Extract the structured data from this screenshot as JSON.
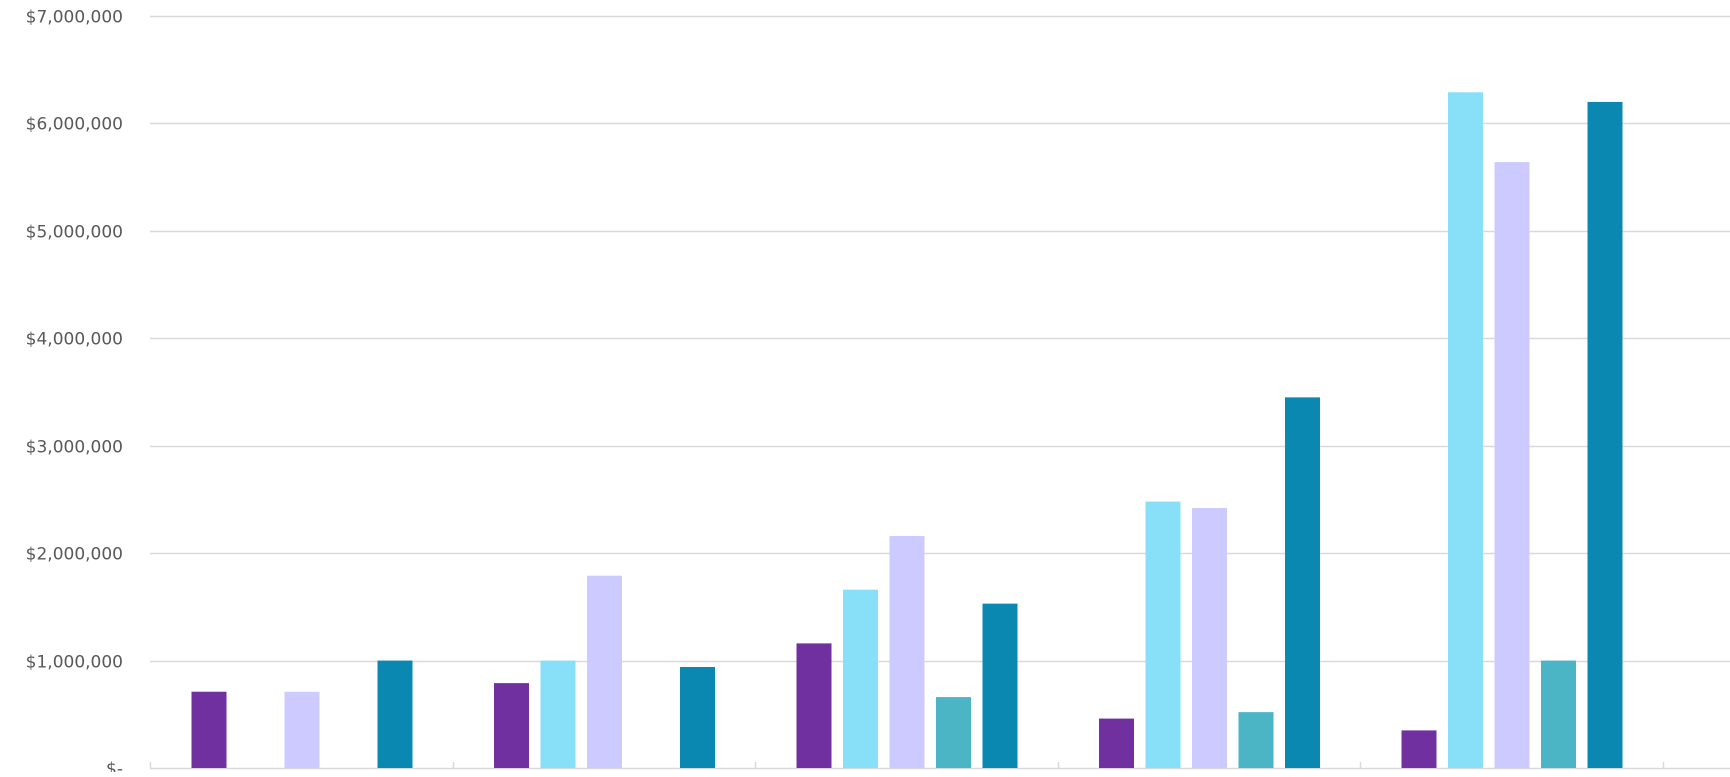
{
  "chart_data": {
    "type": "bar",
    "title": "",
    "xlabel": "",
    "ylabel": "",
    "ylim": [
      0,
      7000000
    ],
    "y_ticks": [
      0,
      1000000,
      2000000,
      3000000,
      4000000,
      5000000,
      6000000,
      7000000
    ],
    "y_tick_labels": [
      "$-",
      "$1,000,000",
      "$2,000,000",
      "$3,000,000",
      "$4,000,000",
      "$5,000,000",
      "$6,000,000",
      "$7,000,000"
    ],
    "grid": true,
    "legend": "none",
    "categories": [
      "",
      "",
      "",
      "",
      ""
    ],
    "series": [
      {
        "color": "#7030a0",
        "values": [
          710000,
          790000,
          1160000,
          460000,
          350000
        ]
      },
      {
        "color": "#87dff8",
        "values": [
          0,
          1000000,
          1660000,
          2480000,
          6290000
        ]
      },
      {
        "color": "#cccaff",
        "values": [
          710000,
          1790000,
          2160000,
          2420000,
          5640000
        ]
      },
      {
        "color": "#4bb5c6",
        "values": [
          0,
          0,
          660000,
          520000,
          1000000
        ]
      },
      {
        "color": "#0a88b1",
        "values": [
          1000000,
          940000,
          1530000,
          3450000,
          6200000
        ]
      }
    ]
  }
}
